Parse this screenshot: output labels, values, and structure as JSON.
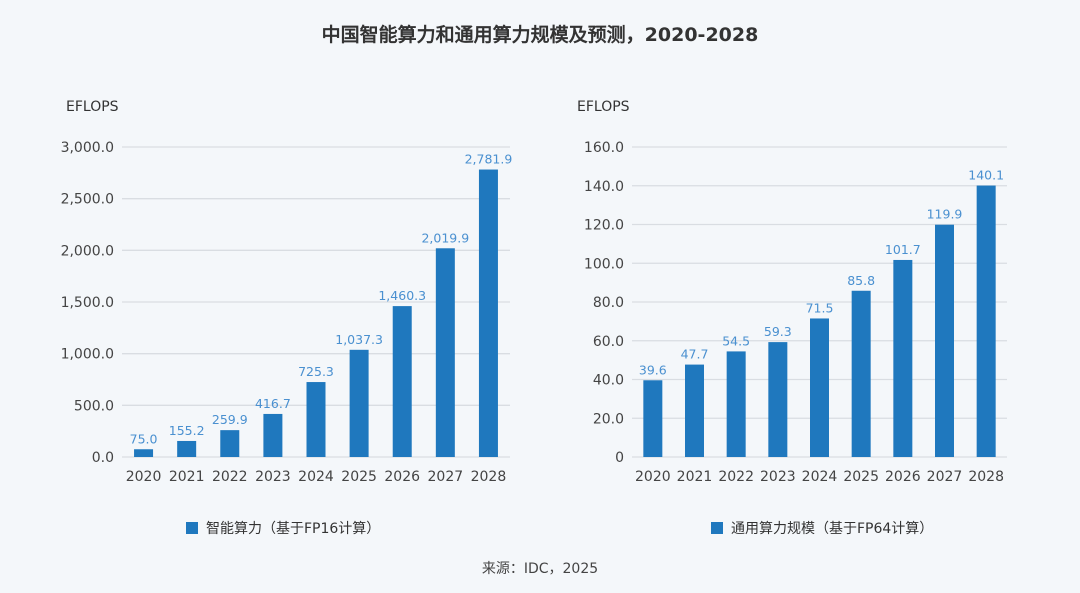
{
  "title": "中国智能算力和通用算力规模及预测，2020-2028",
  "source": "来源：IDC，2025",
  "colors": {
    "bar": "#1f78be",
    "data_label": "#4a90d0",
    "grid": "#d9dde2",
    "background": "#f4f7fa"
  },
  "chart_data": [
    {
      "type": "bar",
      "ylabel": "EFLOPS",
      "legend": "智能算力（基于FP16计算）",
      "legend_position": "bottom",
      "grid": true,
      "categories": [
        "2020",
        "2021",
        "2022",
        "2023",
        "2024",
        "2025",
        "2026",
        "2027",
        "2028"
      ],
      "values": [
        75.0,
        155.2,
        259.9,
        416.7,
        725.3,
        1037.3,
        1460.3,
        2019.9,
        2781.9
      ],
      "value_labels": [
        "75.0",
        "155.2",
        "259.9",
        "416.7",
        "725.3",
        "1,037.3",
        "1,460.3",
        "2,019.9",
        "2,781.9"
      ],
      "ylim": [
        0,
        3000
      ],
      "yticks": [
        0,
        500,
        1000,
        1500,
        2000,
        2500,
        3000
      ],
      "ytick_labels": [
        "0.0",
        "500.0",
        "1,000.0",
        "1,500.0",
        "2,000.0",
        "2,500.0",
        "3,000.0"
      ]
    },
    {
      "type": "bar",
      "ylabel": "EFLOPS",
      "legend": "通用算力规模（基于FP64计算）",
      "legend_position": "bottom",
      "grid": true,
      "categories": [
        "2020",
        "2021",
        "2022",
        "2023",
        "2024",
        "2025",
        "2026",
        "2027",
        "2028"
      ],
      "values": [
        39.6,
        47.7,
        54.5,
        59.3,
        71.5,
        85.8,
        101.7,
        119.9,
        140.1
      ],
      "value_labels": [
        "39.6",
        "47.7",
        "54.5",
        "59.3",
        "71.5",
        "85.8",
        "101.7",
        "119.9",
        "140.1"
      ],
      "ylim": [
        0,
        160
      ],
      "yticks": [
        0,
        20,
        40,
        60,
        80,
        100,
        120,
        140,
        160
      ],
      "ytick_labels": [
        "0",
        "20.0",
        "40.0",
        "60.0",
        "80.0",
        "100.0",
        "120.0",
        "140.0",
        "160.0"
      ]
    }
  ]
}
